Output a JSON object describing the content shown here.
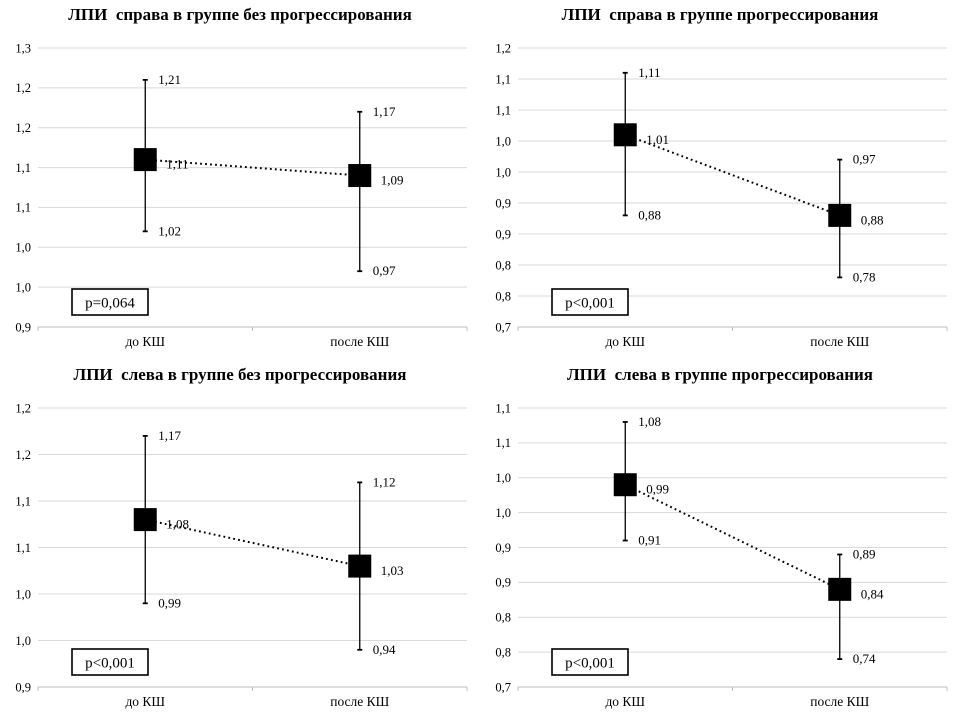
{
  "colors": {
    "marker": "#000000",
    "gridline": "#d9d9d9",
    "axis": "#bdbdbd",
    "text": "#000000",
    "background": "#ffffff"
  },
  "chart_data": [
    {
      "type": "scatter",
      "subtype": "mean-with-error-bars",
      "title": "ЛПИ  справа в группе без прогрессирования",
      "p_value_label": "p=0,064",
      "categories": [
        "до КШ",
        "после КШ"
      ],
      "ylim": [
        0.9,
        1.25
      ],
      "grid": true,
      "legend": "none",
      "y_ticks": [
        {
          "value": 1.25,
          "label": "1,3"
        },
        {
          "value": 1.2,
          "label": "1,2"
        },
        {
          "value": 1.15,
          "label": "1,2"
        },
        {
          "value": 1.1,
          "label": "1,1"
        },
        {
          "value": 1.05,
          "label": "1,1"
        },
        {
          "value": 1.0,
          "label": "1,0"
        },
        {
          "value": 0.95,
          "label": "1,0"
        },
        {
          "value": 0.9,
          "label": "0,9"
        }
      ],
      "points": [
        {
          "category": "до КШ",
          "mean": 1.11,
          "ci_low": 1.02,
          "ci_high": 1.21,
          "mean_label": "1,11",
          "low_label": "1,02",
          "high_label": "1,21"
        },
        {
          "category": "после КШ",
          "mean": 1.09,
          "ci_low": 0.97,
          "ci_high": 1.17,
          "mean_label": "1,09",
          "low_label": "0,97",
          "high_label": "1,17"
        }
      ]
    },
    {
      "type": "scatter",
      "subtype": "mean-with-error-bars",
      "title": "ЛПИ  справа в группе прогрессирования",
      "p_value_label": "p<0,001",
      "categories": [
        "до КШ",
        "после КШ"
      ],
      "ylim": [
        0.7,
        1.15
      ],
      "grid": true,
      "legend": "none",
      "y_ticks": [
        {
          "value": 1.15,
          "label": "1,2"
        },
        {
          "value": 1.1,
          "label": "1,1"
        },
        {
          "value": 1.05,
          "label": "1,1"
        },
        {
          "value": 1.0,
          "label": "1,0"
        },
        {
          "value": 0.95,
          "label": "1,0"
        },
        {
          "value": 0.9,
          "label": "0,9"
        },
        {
          "value": 0.85,
          "label": "0,9"
        },
        {
          "value": 0.8,
          "label": "0,8"
        },
        {
          "value": 0.75,
          "label": "0,8"
        },
        {
          "value": 0.7,
          "label": "0,7"
        }
      ],
      "points": [
        {
          "category": "до КШ",
          "mean": 1.01,
          "ci_low": 0.88,
          "ci_high": 1.11,
          "mean_label": "1,01",
          "low_label": "0,88",
          "high_label": "1,11"
        },
        {
          "category": "после КШ",
          "mean": 0.88,
          "ci_low": 0.78,
          "ci_high": 0.97,
          "mean_label": "0,88",
          "low_label": "0,78",
          "high_label": "0,97"
        }
      ]
    },
    {
      "type": "scatter",
      "subtype": "mean-with-error-bars",
      "title": "ЛПИ  слева в группе без прогрессирования",
      "p_value_label": "p<0,001",
      "categories": [
        "до КШ",
        "после КШ"
      ],
      "ylim": [
        0.9,
        1.2
      ],
      "grid": true,
      "legend": "none",
      "y_ticks": [
        {
          "value": 1.2,
          "label": "1,2"
        },
        {
          "value": 1.15,
          "label": "1,2"
        },
        {
          "value": 1.1,
          "label": "1,1"
        },
        {
          "value": 1.05,
          "label": "1,1"
        },
        {
          "value": 1.0,
          "label": "1,0"
        },
        {
          "value": 0.95,
          "label": "1,0"
        },
        {
          "value": 0.9,
          "label": "0,9"
        }
      ],
      "points": [
        {
          "category": "до КШ",
          "mean": 1.08,
          "ci_low": 0.99,
          "ci_high": 1.17,
          "mean_label": "1,08",
          "low_label": "0,99",
          "high_label": "1,17"
        },
        {
          "category": "после КШ",
          "mean": 1.03,
          "ci_low": 0.94,
          "ci_high": 1.12,
          "mean_label": "1,03",
          "low_label": "0,94",
          "high_label": "1,12"
        }
      ]
    },
    {
      "type": "scatter",
      "subtype": "mean-with-error-bars",
      "title": "ЛПИ  слева в группе прогрессирования",
      "p_value_label": "p<0,001",
      "categories": [
        "до КШ",
        "после КШ"
      ],
      "ylim": [
        0.7,
        1.1
      ],
      "grid": true,
      "legend": "none",
      "y_ticks": [
        {
          "value": 1.1,
          "label": "1,1"
        },
        {
          "value": 1.05,
          "label": "1,1"
        },
        {
          "value": 1.0,
          "label": "1,0"
        },
        {
          "value": 0.95,
          "label": "1,0"
        },
        {
          "value": 0.9,
          "label": "0,9"
        },
        {
          "value": 0.85,
          "label": "0,9"
        },
        {
          "value": 0.8,
          "label": "0,8"
        },
        {
          "value": 0.75,
          "label": "0,8"
        },
        {
          "value": 0.7,
          "label": "0,7"
        }
      ],
      "points": [
        {
          "category": "до КШ",
          "mean": 0.99,
          "ci_low": 0.91,
          "ci_high": 1.08,
          "mean_label": "0,99",
          "low_label": "0,91",
          "high_label": "1,08"
        },
        {
          "category": "после КШ",
          "mean": 0.84,
          "ci_low": 0.74,
          "ci_high": 0.89,
          "mean_label": "0,84",
          "low_label": "0,74",
          "high_label": "0,89"
        }
      ]
    }
  ]
}
